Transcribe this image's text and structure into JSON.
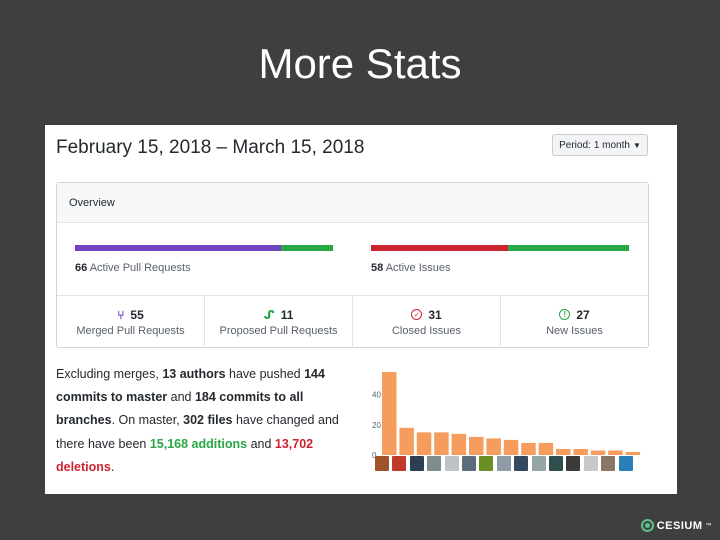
{
  "slide": {
    "title": "More Stats"
  },
  "header": {
    "date_range": "February 15, 2018 – March 15, 2018"
  },
  "period": {
    "label": "Period:",
    "value": "1 month"
  },
  "overview": {
    "title": "Overview",
    "pull_requests": {
      "count": "66",
      "text": "Active Pull Requests",
      "merged_fraction": 0.8,
      "colors": {
        "merged": "#6f42c1",
        "open": "#28a745"
      }
    },
    "issues": {
      "count": "58",
      "text": "Active Issues",
      "closed_fraction": 0.53,
      "colors": {
        "closed": "#cb2431",
        "open": "#28a745"
      }
    },
    "stats": [
      {
        "icon": "git-merge-icon",
        "value": "55",
        "label": "Merged Pull Requests"
      },
      {
        "icon": "git-pull-request-icon",
        "value": "11",
        "label": "Proposed Pull Requests"
      },
      {
        "icon": "issue-closed-icon",
        "value": "31",
        "label": "Closed Issues"
      },
      {
        "icon": "issue-opened-icon",
        "value": "27",
        "label": "New Issues"
      }
    ]
  },
  "summary": {
    "p1": "Excluding merges, ",
    "authors": "13 authors",
    "p2": " have pushed ",
    "commits_master": "144 commits to master",
    "p3": " and ",
    "commits_all": "184 commits to all branches",
    "p4": ". On master, ",
    "files": "302 files",
    "p5": " have changed and there have been ",
    "additions": "15,168 additions",
    "p6": " and ",
    "deletions": "13,702 deletions",
    "p7": "."
  },
  "chart_data": {
    "type": "bar",
    "values": [
      55,
      18,
      15,
      15,
      14,
      12,
      11,
      10,
      8,
      8,
      4,
      4,
      3,
      3,
      2
    ],
    "yticks": [
      0,
      20,
      40
    ],
    "ylim": [
      0,
      55
    ],
    "bar_color": "#f69d5d"
  },
  "avatar_colors": [
    "#a0522d",
    "#c0392b",
    "#2c3e50",
    "#7f8c8d",
    "#bdc3c7",
    "#5d6d7e",
    "#6b8e23",
    "#8e9aa8",
    "#34495e",
    "#95a5a6",
    "#2f4f4f",
    "#3b3b3b",
    "#c8c8c8",
    "#8b7765",
    "#2980b9"
  ],
  "logo": {
    "text": "CESIUM",
    "mark": "™"
  }
}
